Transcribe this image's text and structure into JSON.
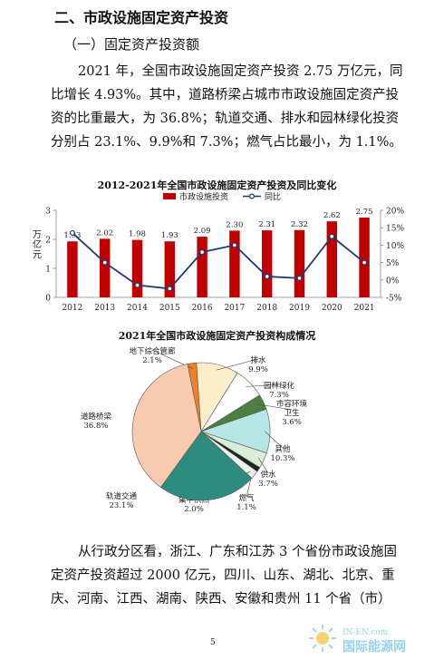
{
  "heading1": "二、市政设施固定资产投资",
  "heading2": "（一）固定资产投资额",
  "para1_lines": [
    "2021 年，全国市政设施固定资产投资 2.75 万亿元，同",
    "比增长 4.93%。其中，道路桥梁占城市市政设施固定资产投",
    "资的比重最大，为 36.8%；轨道交通、排水和园林绿化投资",
    "分别占 23.1%、9.9%和 7.3%；燃气占比最小，为 1.1%。"
  ],
  "para2_lines": [
    "从行政分区看，浙江、广东和江苏 3 个省份市政设施固",
    "定资产投资超过 2000 亿元，四川、山东、湖北、北京、重",
    "庆、河南、江西、湖南、陕西、安徽和贵州 11 个省（市）"
  ],
  "page_number": "5",
  "watermark": {
    "top": "IN-EN.com",
    "bottom": "国际能源网"
  },
  "chart_data": [
    {
      "type": "bar",
      "title": "2012-2021年全国市政设施固定资产投资及同比变化",
      "ylabel": "万亿元",
      "categories": [
        "2012",
        "2013",
        "2014",
        "2015",
        "2016",
        "2017",
        "2018",
        "2019",
        "2020",
        "2021"
      ],
      "series": [
        {
          "name": "市政设施投资",
          "type": "bar",
          "values": [
            1.93,
            2.02,
            1.98,
            1.93,
            2.09,
            2.3,
            2.31,
            2.32,
            2.62,
            2.75
          ],
          "color": "#c00000"
        },
        {
          "name": "同比",
          "type": "line",
          "axis": "right",
          "values": [
            13.5,
            5.0,
            -1.5,
            -2.5,
            8.0,
            10.0,
            1.0,
            0.5,
            12.5,
            5.0
          ],
          "color": "#1f3a6e"
        }
      ],
      "ylim": [
        0,
        3
      ],
      "yticks": [
        "0",
        "1",
        "2",
        "3"
      ],
      "y2lim": [
        -5,
        20
      ],
      "y2ticks": [
        "-5%",
        "0%",
        "5%",
        "10%",
        "15%",
        "20%"
      ],
      "legend": "top-center"
    },
    {
      "type": "pie",
      "title": "2021年全国市政设施固定资产投资构成情况",
      "slices": [
        {
          "label": "地下综合管廊",
          "pct": "2.1%",
          "value": 2.1,
          "color": "#f07f2a"
        },
        {
          "label": "排水",
          "pct": "9.9%",
          "value": 9.9,
          "color": "#fdeecb"
        },
        {
          "label": "园林绿化",
          "pct": "7.3%",
          "value": 7.3,
          "color": "#ffffff"
        },
        {
          "label": "市容环境卫生",
          "pct": "3.6%",
          "value": 3.6,
          "color": "#4f7f3f"
        },
        {
          "label": "其他",
          "pct": "10.3%",
          "value": 10.3,
          "color": "#b7e6e6"
        },
        {
          "label": "供水",
          "pct": "3.7%",
          "value": 3.7,
          "color": "#d9eed6"
        },
        {
          "label": "燃气",
          "pct": "1.1%",
          "value": 1.1,
          "color": "#222222"
        },
        {
          "label": "集中供热",
          "pct": "2.0%",
          "value": 2.0,
          "color": "#e9f3ec"
        },
        {
          "label": "轨道交通",
          "pct": "23.1%",
          "value": 23.1,
          "color": "#2e8b80"
        },
        {
          "label": "道路桥梁",
          "pct": "36.8%",
          "value": 36.8,
          "color": "#f8cbb0"
        }
      ]
    }
  ]
}
